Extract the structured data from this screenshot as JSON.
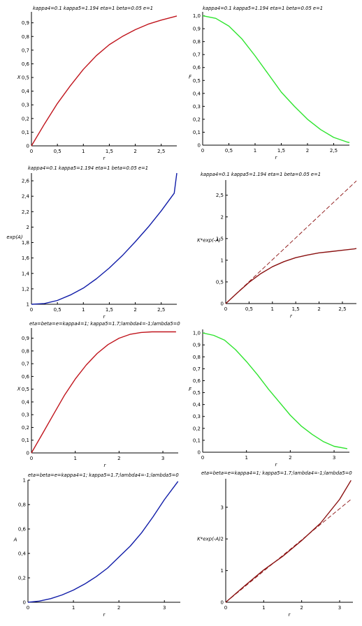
{
  "chart_data": [
    {
      "type": "line",
      "title": "kappa4=0.1  kappa5=1.194    eta=1 beta=0.05  e=1",
      "xlabel": "r",
      "ylabel": "X",
      "xlim": [
        0,
        2.8
      ],
      "ylim": [
        0,
        0.98
      ],
      "xticks": [
        0,
        0.5,
        1,
        1.5,
        2,
        2.5
      ],
      "yticks": [
        0,
        0.1,
        0.2,
        0.3,
        0.4,
        0.5,
        0.6,
        0.7,
        0.8,
        0.9
      ],
      "grid": false,
      "series": [
        {
          "color": "#c0141c",
          "dashed": false,
          "x": [
            0,
            0.25,
            0.5,
            0.75,
            1,
            1.25,
            1.5,
            1.75,
            2,
            2.25,
            2.5,
            2.75,
            2.8
          ],
          "y": [
            0,
            0.16,
            0.31,
            0.44,
            0.56,
            0.66,
            0.74,
            0.8,
            0.85,
            0.89,
            0.92,
            0.945,
            0.95
          ]
        }
      ]
    },
    {
      "type": "line",
      "title": "kappa4=0.1  kappa5=1.194    eta=1 beta=0.05  e=1",
      "xlabel": "r",
      "ylabel": "F",
      "xlim": [
        0,
        2.8
      ],
      "ylim": [
        0,
        1.03
      ],
      "xticks": [
        0,
        0.5,
        1,
        1.5,
        2,
        2.5
      ],
      "yticks": [
        0,
        0.1,
        0.2,
        0.3,
        0.4,
        0.5,
        0.6,
        0.7,
        0.8,
        0.9,
        1.0
      ],
      "grid": false,
      "series": [
        {
          "color": "#2ee42e",
          "dashed": false,
          "x": [
            0,
            0.25,
            0.5,
            0.75,
            1,
            1.25,
            1.5,
            1.75,
            2,
            2.25,
            2.5,
            2.75,
            2.8
          ],
          "y": [
            1.0,
            0.98,
            0.92,
            0.82,
            0.69,
            0.55,
            0.41,
            0.3,
            0.2,
            0.12,
            0.06,
            0.025,
            0.02
          ]
        }
      ]
    },
    {
      "type": "line",
      "title": "kappa4=0.1  kappa5=1.194    eta=1 beta=0.05  e=1",
      "xlabel": "r",
      "ylabel": "exp(A)",
      "xlim": [
        0,
        2.8
      ],
      "ylim": [
        1,
        2.7
      ],
      "xticks": [
        0,
        0.5,
        1,
        1.5,
        2,
        2.5
      ],
      "yticks": [
        1,
        1.2,
        1.4,
        1.6,
        1.8,
        2,
        2.2,
        2.4,
        2.6
      ],
      "grid": false,
      "series": [
        {
          "color": "#101ca8",
          "dashed": false,
          "x": [
            0,
            0.25,
            0.5,
            0.75,
            1,
            1.25,
            1.5,
            1.75,
            2,
            2.25,
            2.5,
            2.75,
            2.8
          ],
          "y": [
            1.0,
            1.01,
            1.05,
            1.12,
            1.21,
            1.33,
            1.47,
            1.63,
            1.81,
            2.0,
            2.21,
            2.44,
            2.7
          ]
        }
      ]
    },
    {
      "type": "line",
      "title": "kappa4=0.1  kappa5=1.194    eta=1 beta=0.05  e=1",
      "xlabel": "r",
      "ylabel": "K*exp(-A)",
      "xlim": [
        0,
        2.8
      ],
      "ylim": [
        0,
        2.85
      ],
      "xticks": [
        0,
        0.5,
        1,
        1.5,
        2,
        2.5
      ],
      "yticks": [
        0,
        0.5,
        1,
        1.5,
        2,
        2.5
      ],
      "grid": false,
      "series": [
        {
          "color": "#8a1010",
          "dashed": false,
          "x": [
            0,
            0.25,
            0.5,
            0.75,
            1,
            1.25,
            1.5,
            1.75,
            2,
            2.25,
            2.5,
            2.75,
            2.8
          ],
          "y": [
            0,
            0.25,
            0.49,
            0.69,
            0.85,
            0.97,
            1.06,
            1.12,
            1.17,
            1.2,
            1.23,
            1.26,
            1.27
          ]
        },
        {
          "color": "#8a1010",
          "dashed": true,
          "x": [
            0,
            2.8
          ],
          "y": [
            0,
            2.83
          ]
        }
      ]
    },
    {
      "type": "line",
      "title": "eta=beta=e=kappa4=1; kappa5=1.7;lambda4=-1;lambda5=0",
      "xlabel": "r",
      "ylabel": "X",
      "xlim": [
        0,
        3.35
      ],
      "ylim": [
        0,
        0.98
      ],
      "xticks": [
        0,
        1,
        2,
        3
      ],
      "yticks": [
        0,
        0.1,
        0.2,
        0.3,
        0.4,
        0.5,
        0.6,
        0.7,
        0.8,
        0.9
      ],
      "grid": false,
      "series": [
        {
          "color": "#c0141c",
          "dashed": false,
          "x": [
            0,
            0.25,
            0.5,
            0.75,
            1,
            1.25,
            1.5,
            1.75,
            2,
            2.25,
            2.5,
            2.75,
            3,
            3.3
          ],
          "y": [
            0,
            0.15,
            0.3,
            0.45,
            0.58,
            0.69,
            0.78,
            0.85,
            0.9,
            0.93,
            0.945,
            0.95,
            0.95,
            0.95
          ]
        }
      ]
    },
    {
      "type": "line",
      "title": "",
      "xlabel": "r",
      "ylabel": "F",
      "xlim": [
        0,
        3.35
      ],
      "ylim": [
        0,
        1.03
      ],
      "xticks": [
        0,
        1,
        2,
        3
      ],
      "yticks": [
        0,
        0.1,
        0.2,
        0.3,
        0.4,
        0.5,
        0.6,
        0.7,
        0.8,
        0.9,
        1.0
      ],
      "grid": false,
      "series": [
        {
          "color": "#2ee42e",
          "dashed": false,
          "x": [
            0,
            0.25,
            0.5,
            0.75,
            1,
            1.25,
            1.5,
            1.75,
            2,
            2.25,
            2.5,
            2.75,
            3,
            3.3
          ],
          "y": [
            1.0,
            0.98,
            0.94,
            0.86,
            0.76,
            0.65,
            0.53,
            0.42,
            0.31,
            0.22,
            0.15,
            0.09,
            0.05,
            0.03
          ]
        }
      ]
    },
    {
      "type": "line",
      "title": "eta=beta=e=kappa4=1; kappa5=1.7;lambda4=-1;lambda5=0",
      "xlabel": "r",
      "ylabel": "A",
      "xlim": [
        0,
        3.35
      ],
      "ylim": [
        0,
        1.0
      ],
      "xticks": [
        0,
        1,
        2,
        3
      ],
      "yticks": [
        0,
        0.2,
        0.4,
        0.6,
        0.8,
        1
      ],
      "grid": false,
      "series": [
        {
          "color": "#101ca8",
          "dashed": false,
          "x": [
            0,
            0.25,
            0.5,
            0.75,
            1,
            1.25,
            1.5,
            1.75,
            2,
            2.25,
            2.5,
            2.75,
            3,
            3.3
          ],
          "y": [
            0,
            0.01,
            0.03,
            0.06,
            0.1,
            0.15,
            0.21,
            0.28,
            0.37,
            0.46,
            0.57,
            0.7,
            0.84,
            0.99
          ]
        }
      ]
    },
    {
      "type": "line",
      "title": "eta=beta=e=kappa4=1; kappa5=1.7;lambda4=-1;lambda5=0",
      "xlabel": "r",
      "ylabel": "K*exp(-A)",
      "xlim": [
        0,
        3.35
      ],
      "ylim": [
        0,
        3.9
      ],
      "xticks": [
        0,
        1,
        2,
        3
      ],
      "yticks": [
        0,
        1,
        2,
        3
      ],
      "grid": false,
      "series": [
        {
          "color": "#8a1010",
          "dashed": false,
          "x": [
            0,
            0.5,
            1,
            1.5,
            2,
            2.5,
            3,
            3.3
          ],
          "y": [
            0,
            0.52,
            1.02,
            1.45,
            1.95,
            2.5,
            3.25,
            3.85
          ]
        },
        {
          "color": "#8a1010",
          "dashed": true,
          "x": [
            0,
            3.3
          ],
          "y": [
            0,
            3.25
          ]
        }
      ]
    }
  ]
}
